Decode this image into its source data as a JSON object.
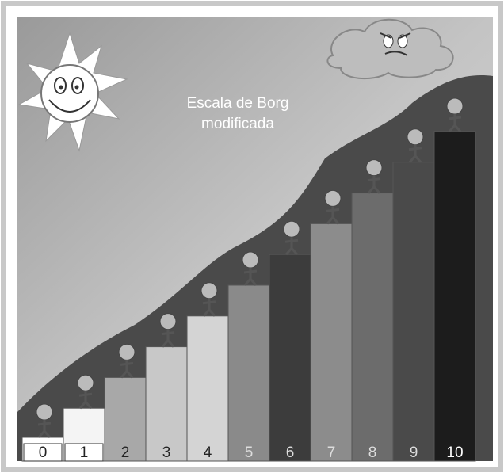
{
  "title": {
    "line1": "Escala de Borg",
    "line2": "modificada"
  },
  "steps": {
    "labels": [
      "0",
      "1",
      "2",
      "3",
      "4",
      "5",
      "6",
      "7",
      "8",
      "9",
      "10"
    ]
  }
}
